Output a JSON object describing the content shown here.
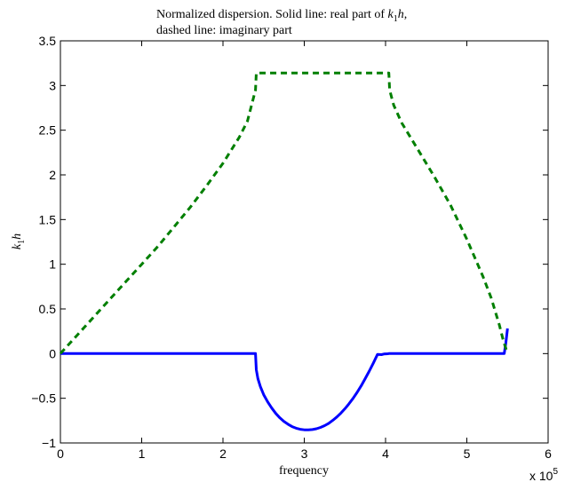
{
  "chart_data": {
    "type": "line",
    "title": "",
    "title_lines": [
      "Normalized dispersion. Solid line: real part of ",
      "dashed line: imaginary part"
    ],
    "title_math": {
      "base": "k",
      "sub": "1",
      "var": "h",
      "trail": ","
    },
    "xlabel": "frequency",
    "ylabel": {
      "base": "k",
      "sub": "1",
      "var": "h"
    },
    "xlim": [
      0,
      600000
    ],
    "ylim": [
      -1,
      3.5
    ],
    "x_ticks": [
      0,
      100000,
      200000,
      300000,
      400000,
      500000,
      600000
    ],
    "x_tick_labels": [
      "0",
      "1",
      "2",
      "3",
      "4",
      "5",
      "6"
    ],
    "x_exponent": {
      "base": "x 10",
      "exp": "5"
    },
    "y_ticks": [
      -1,
      -0.5,
      0,
      0.5,
      1,
      1.5,
      2,
      2.5,
      3,
      3.5
    ],
    "y_tick_labels": [
      "−1",
      "−0.5",
      "0",
      "0.5",
      "1",
      "1.5",
      "2",
      "2.5",
      "3",
      "3.5"
    ],
    "grid": false,
    "series": [
      {
        "style": "solid",
        "color": "#0000ff",
        "x": [
          0,
          240000,
          241000,
          243000,
          246000,
          250000,
          255000,
          260000,
          265000,
          270000,
          275000,
          280000,
          285000,
          290000,
          295000,
          300000,
          305000,
          310000,
          315000,
          320000,
          325000,
          330000,
          335000,
          340000,
          345000,
          350000,
          355000,
          360000,
          365000,
          370000,
          375000,
          380000,
          385000,
          390000,
          395000,
          398000,
          401000,
          403000,
          404000,
          546000,
          548000,
          550000
        ],
        "y": [
          0,
          0,
          -0.18,
          -0.28,
          -0.37,
          -0.46,
          -0.54,
          -0.61,
          -0.67,
          -0.72,
          -0.76,
          -0.79,
          -0.817,
          -0.835,
          -0.847,
          -0.853,
          -0.854,
          -0.85,
          -0.841,
          -0.826,
          -0.806,
          -0.78,
          -0.748,
          -0.71,
          -0.666,
          -0.617,
          -0.562,
          -0.501,
          -0.434,
          -0.36,
          -0.28,
          -0.195,
          -0.105,
          -0.01,
          -0.012,
          -0.005,
          -0.003,
          -0.002,
          0,
          0,
          0.12,
          0.28
        ]
      },
      {
        "style": "dashed",
        "color": "#007f00",
        "x": [
          0,
          20000,
          40000,
          60000,
          80000,
          100000,
          120000,
          140000,
          160000,
          180000,
          200000,
          220000,
          230000,
          240000,
          241000,
          404000,
          405000,
          410000,
          420000,
          440000,
          460000,
          480000,
          500000,
          520000,
          530000,
          540000,
          545000,
          548000,
          549000
        ],
        "y": [
          0,
          0.2,
          0.4,
          0.6,
          0.8,
          1.0,
          1.2,
          1.42,
          1.64,
          1.88,
          2.13,
          2.42,
          2.6,
          2.95,
          3.14,
          3.14,
          2.95,
          2.78,
          2.58,
          2.28,
          1.98,
          1.66,
          1.28,
          0.86,
          0.62,
          0.32,
          0.14,
          0.06,
          0.02
        ]
      }
    ]
  }
}
